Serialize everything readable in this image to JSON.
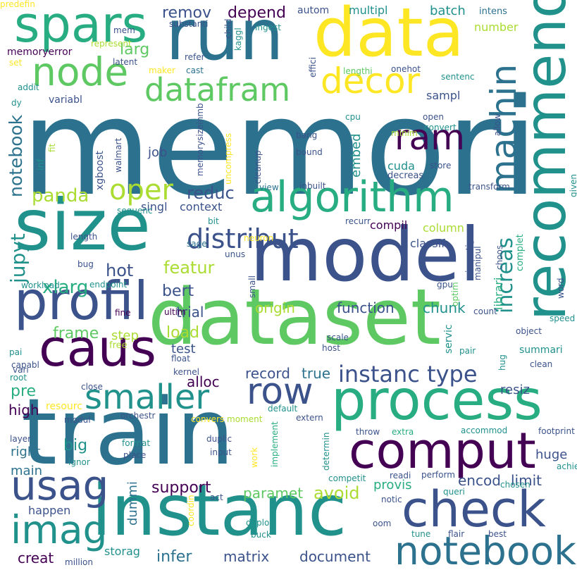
{
  "palette": {
    "dark_purple": "#440154",
    "indigo": "#3b528b",
    "teal_blue": "#2c728e",
    "teal": "#21918c",
    "green": "#27ad81",
    "light_green": "#5ec962",
    "yellow_green": "#aadc32",
    "yellow": "#fde725"
  },
  "words": [
    {
      "text": "memori",
      "size": 190,
      "color": "#2c728e"
    },
    {
      "text": "train",
      "size": 130,
      "color": "#2c728e"
    },
    {
      "text": "dataset",
      "size": 110,
      "color": "#5ec962"
    },
    {
      "text": "model",
      "size": 105,
      "color": "#3b528b"
    },
    {
      "text": "instanc",
      "size": 100,
      "color": "#21918c"
    },
    {
      "text": "size",
      "size": 100,
      "color": "#21918c"
    },
    {
      "text": "run",
      "size": 100,
      "color": "#2c728e"
    },
    {
      "text": "data",
      "size": 95,
      "color": "#fde725"
    },
    {
      "text": "recommend",
      "size": 80,
      "color": "#21918c"
    },
    {
      "text": "process",
      "size": 78,
      "color": "#27ad81"
    },
    {
      "text": "profil",
      "size": 75,
      "color": "#3b528b"
    },
    {
      "text": "caus",
      "size": 72,
      "color": "#440154"
    },
    {
      "text": "comput",
      "size": 70,
      "color": "#440154"
    },
    {
      "text": "check",
      "size": 70,
      "color": "#3b528b"
    },
    {
      "text": "spars",
      "size": 70,
      "color": "#27ad81"
    },
    {
      "text": "algorithm",
      "size": 60,
      "color": "#27ad81"
    },
    {
      "text": "notebook",
      "size": 55,
      "color": "#2c728e"
    },
    {
      "text": "usag",
      "size": 58,
      "color": "#3b528b"
    },
    {
      "text": "imag",
      "size": 55,
      "color": "#21918c"
    },
    {
      "text": "node",
      "size": 55,
      "color": "#5ec962"
    },
    {
      "text": "decor",
      "size": 50,
      "color": "#fde725"
    },
    {
      "text": "row",
      "size": 52,
      "color": "#3b528b"
    },
    {
      "text": "smaller",
      "size": 48,
      "color": "#21918c"
    },
    {
      "text": "ram",
      "size": 50,
      "color": "#440154"
    },
    {
      "text": "machin",
      "size": 50,
      "color": "#2c728e"
    },
    {
      "text": "datafram",
      "size": 45,
      "color": "#5ec962"
    },
    {
      "text": "oper",
      "size": 40,
      "color": "#aadc32"
    },
    {
      "text": "distribut",
      "size": 38,
      "color": "#3b528b"
    },
    {
      "text": "instanc type",
      "size": 32,
      "color": "#3b528b"
    },
    {
      "text": "increas",
      "size": 30,
      "color": "#21918c"
    },
    {
      "text": "notebook",
      "size": 25,
      "color": "#2c728e"
    },
    {
      "text": "jupyt",
      "size": 28,
      "color": "#21918c"
    },
    {
      "text": "xlarg",
      "size": 26,
      "color": "#27ad81"
    },
    {
      "text": "panda",
      "size": 26,
      "color": "#aadc32"
    },
    {
      "text": "reduc",
      "size": 24,
      "color": "#3b528b"
    },
    {
      "text": "featur",
      "size": 24,
      "color": "#aadc32"
    },
    {
      "text": "hot",
      "size": 24,
      "color": "#3b528b"
    },
    {
      "text": "bert",
      "size": 22,
      "color": "#3b528b"
    },
    {
      "text": "frame",
      "size": 22,
      "color": "#5ec962"
    },
    {
      "text": "load",
      "size": 22,
      "color": "#aadc32"
    },
    {
      "text": "trial",
      "size": 20,
      "color": "#3b528b"
    },
    {
      "text": "origin",
      "size": 20,
      "color": "#aadc32"
    },
    {
      "text": "function",
      "size": 20,
      "color": "#3b528b"
    },
    {
      "text": "chunk",
      "size": 20,
      "color": "#21918c"
    },
    {
      "text": "record",
      "size": 20,
      "color": "#3b528b"
    },
    {
      "text": "true",
      "size": 20,
      "color": "#2c728e"
    },
    {
      "text": "alloc",
      "size": 20,
      "color": "#440154"
    },
    {
      "text": "test",
      "size": 18,
      "color": "#3b528b"
    },
    {
      "text": "step",
      "size": 18,
      "color": "#aadc32"
    },
    {
      "text": "big",
      "size": 22,
      "color": "#21918c"
    },
    {
      "text": "pre",
      "size": 22,
      "color": "#27ad81"
    },
    {
      "text": "high",
      "size": 20,
      "color": "#440154"
    },
    {
      "text": "right",
      "size": 18,
      "color": "#2c728e"
    },
    {
      "text": "main",
      "size": 18,
      "color": "#2c728e"
    },
    {
      "text": "support",
      "size": 22,
      "color": "#440154"
    },
    {
      "text": "avoid",
      "size": 24,
      "color": "#aadc32"
    },
    {
      "text": "paramet",
      "size": 20,
      "color": "#5ec962"
    },
    {
      "text": "provis",
      "size": 18,
      "color": "#27ad81"
    },
    {
      "text": "encod",
      "size": 20,
      "color": "#3b528b"
    },
    {
      "text": "limit",
      "size": 20,
      "color": "#3b528b"
    },
    {
      "text": "huge",
      "size": 18,
      "color": "#3b528b"
    },
    {
      "text": "resiz",
      "size": 18,
      "color": "#3b528b"
    },
    {
      "text": "dummi",
      "size": 18,
      "color": "#2c728e"
    },
    {
      "text": "infer",
      "size": 22,
      "color": "#2c728e"
    },
    {
      "text": "matrix",
      "size": 20,
      "color": "#3b528b"
    },
    {
      "text": "document",
      "size": 20,
      "color": "#3b528b"
    },
    {
      "text": "creat",
      "size": 20,
      "color": "#440154"
    },
    {
      "text": "storag",
      "size": 16,
      "color": "#21918c"
    },
    {
      "text": "happen",
      "size": 16,
      "color": "#3b528b"
    },
    {
      "text": "remov",
      "size": 22,
      "color": "#3b528b"
    },
    {
      "text": "depend",
      "size": 22,
      "color": "#440154"
    },
    {
      "text": "larg",
      "size": 22,
      "color": "#5ec962"
    },
    {
      "text": "autom",
      "size": 14,
      "color": "#3b528b"
    },
    {
      "text": "multipl",
      "size": 16,
      "color": "#21918c"
    },
    {
      "text": "batch",
      "size": 18,
      "color": "#21918c"
    },
    {
      "text": "number",
      "size": 16,
      "color": "#aadc32"
    },
    {
      "text": "intens",
      "size": 13,
      "color": "#2c728e"
    },
    {
      "text": "memoryerror",
      "size": 14,
      "color": "#440154"
    },
    {
      "text": "sampl",
      "size": 16,
      "color": "#3b528b"
    },
    {
      "text": "job",
      "size": 18,
      "color": "#3b528b"
    },
    {
      "text": "embed",
      "size": 18,
      "color": "#21918c"
    },
    {
      "text": "cuda",
      "size": 16,
      "color": "#21918c"
    },
    {
      "text": "compil",
      "size": 16,
      "color": "#440154"
    },
    {
      "text": "column",
      "size": 16,
      "color": "#aadc32"
    },
    {
      "text": "classif",
      "size": 16,
      "color": "#3b528b"
    },
    {
      "text": "librari",
      "size": 16,
      "color": "#27ad81"
    },
    {
      "text": "singl",
      "size": 16,
      "color": "#3b528b"
    },
    {
      "text": "context",
      "size": 16,
      "color": "#3b528b"
    },
    {
      "text": "xgboost",
      "size": 14,
      "color": "#3b528b"
    },
    {
      "text": "variabl",
      "size": 14,
      "color": "#3b528b"
    },
    {
      "text": "complet",
      "size": 13,
      "color": "#27ad81"
    },
    {
      "text": "convert",
      "size": 12,
      "color": "#21918c"
    },
    {
      "text": "open",
      "size": 12,
      "color": "#3b528b"
    },
    {
      "text": "store",
      "size": 12,
      "color": "#3b528b"
    },
    {
      "text": "transform",
      "size": 12,
      "color": "#3b528b"
    },
    {
      "text": "decreas",
      "size": 13,
      "color": "#3b528b"
    },
    {
      "text": "cleanup",
      "size": 12,
      "color": "#3b528b"
    },
    {
      "text": "bang",
      "size": 12,
      "color": "#3b528b"
    },
    {
      "text": "bound",
      "size": 12,
      "color": "#3b528b"
    },
    {
      "text": "inbuilt",
      "size": 12,
      "color": "#3b528b"
    },
    {
      "text": "view",
      "size": 12,
      "color": "#2c728e"
    },
    {
      "text": "minim",
      "size": 12,
      "color": "#aadc32"
    },
    {
      "text": "cpu",
      "size": 12,
      "color": "#21918c"
    },
    {
      "text": "onehot",
      "size": 12,
      "color": "#3b528b"
    },
    {
      "text": "sentenc",
      "size": 12,
      "color": "#21918c"
    },
    {
      "text": "lengthi",
      "size": 12,
      "color": "#5ec962"
    },
    {
      "text": "effici",
      "size": 12,
      "color": "#3b528b"
    },
    {
      "text": "kaggl",
      "size": 12,
      "color": "#21918c"
    },
    {
      "text": "ingest",
      "size": 12,
      "color": "#21918c"
    },
    {
      "text": "substanti",
      "size": 12,
      "color": "#3b528b"
    },
    {
      "text": "represent",
      "size": 12,
      "color": "#aadc32"
    },
    {
      "text": "refer",
      "size": 12,
      "color": "#3b528b"
    },
    {
      "text": "cast",
      "size": 12,
      "color": "#2c728e"
    },
    {
      "text": "maker",
      "size": 12,
      "color": "#fde725"
    },
    {
      "text": "latent",
      "size": 12,
      "color": "#3b528b"
    },
    {
      "text": "child",
      "size": 12,
      "color": "#3b528b"
    },
    {
      "text": "mem",
      "size": 12,
      "color": "#3b528b"
    },
    {
      "text": "set",
      "size": 12,
      "color": "#fde725"
    },
    {
      "text": "addit",
      "size": 12,
      "color": "#21918c"
    },
    {
      "text": "dy",
      "size": 12,
      "color": "#21918c"
    },
    {
      "text": "fit",
      "size": 12,
      "color": "#aadc32"
    },
    {
      "text": "walmart",
      "size": 12,
      "color": "#3b528b"
    },
    {
      "text": "memorysizeinmb",
      "size": 12,
      "color": "#3b528b"
    },
    {
      "text": "uncompress",
      "size": 12,
      "color": "#fde725"
    },
    {
      "text": "inf",
      "size": 13,
      "color": "#21918c"
    },
    {
      "text": "sequenc",
      "size": 12,
      "color": "#21918c"
    },
    {
      "text": "bit",
      "size": 12,
      "color": "#21918c"
    },
    {
      "text": "sage",
      "size": 12,
      "color": "#2c728e"
    },
    {
      "text": "neuron",
      "size": 12,
      "color": "#fde725"
    },
    {
      "text": "recurr",
      "size": 12,
      "color": "#3b528b"
    },
    {
      "text": "unus",
      "size": 12,
      "color": "#3b528b"
    },
    {
      "text": "choos",
      "size": 12,
      "color": "#3b528b"
    },
    {
      "text": "optim",
      "size": 12,
      "color": "#5ec962"
    },
    {
      "text": "investig",
      "size": 12,
      "color": "#3b528b"
    },
    {
      "text": "manipul",
      "size": 12,
      "color": "#3b528b"
    },
    {
      "text": "allow",
      "size": 12,
      "color": "#3b528b"
    },
    {
      "text": "given",
      "size": 12,
      "color": "#21918c"
    },
    {
      "text": "word",
      "size": 12,
      "color": "#3b528b"
    },
    {
      "text": "gpu",
      "size": 12,
      "color": "#3b528b"
    },
    {
      "text": "count",
      "size": 12,
      "color": "#3b528b"
    },
    {
      "text": "speed",
      "size": 12,
      "color": "#21918c"
    },
    {
      "text": "object",
      "size": 12,
      "color": "#3b528b"
    },
    {
      "text": "summari",
      "size": 14,
      "color": "#21918c"
    },
    {
      "text": "servic",
      "size": 14,
      "color": "#21918c"
    },
    {
      "text": "hug",
      "size": 12,
      "color": "#21918c"
    },
    {
      "text": "scale",
      "size": 12,
      "color": "#3b528b"
    },
    {
      "text": "host",
      "size": 12,
      "color": "#3b528b"
    },
    {
      "text": "pair",
      "size": 12,
      "color": "#21918c"
    },
    {
      "text": "clean",
      "size": 12,
      "color": "#3b528b"
    },
    {
      "text": "length",
      "size": 12,
      "color": "#3b528b"
    },
    {
      "text": "fine",
      "size": 12,
      "color": "#440154"
    },
    {
      "text": "bug",
      "size": 12,
      "color": "#3b528b"
    },
    {
      "text": "workload",
      "size": 12,
      "color": "#21918c"
    },
    {
      "text": "endpoint",
      "size": 12,
      "color": "#21918c"
    },
    {
      "text": "small",
      "size": 12,
      "color": "#3b528b"
    },
    {
      "text": "ultim",
      "size": 12,
      "color": "#440154"
    },
    {
      "text": "pai",
      "size": 12,
      "color": "#21918c"
    },
    {
      "text": "free",
      "size": 13,
      "color": "#aadc32"
    },
    {
      "text": "vari",
      "size": 12,
      "color": "#3b528b"
    },
    {
      "text": "capabl",
      "size": 12,
      "color": "#3b528b"
    },
    {
      "text": "float",
      "size": 12,
      "color": "#3b528b"
    },
    {
      "text": "kernel",
      "size": 12,
      "color": "#3b528b"
    },
    {
      "text": "root",
      "size": 12,
      "color": "#21918c"
    },
    {
      "text": "close",
      "size": 12,
      "color": "#3b528b"
    },
    {
      "text": "default",
      "size": 12,
      "color": "#21918c"
    },
    {
      "text": "resourc",
      "size": 14,
      "color": "#fde725"
    },
    {
      "text": "modul",
      "size": 12,
      "color": "#3b528b"
    },
    {
      "text": "orchestr",
      "size": 12,
      "color": "#3b528b"
    },
    {
      "text": "convers",
      "size": 12,
      "color": "#fde725"
    },
    {
      "text": "moment",
      "size": 12,
      "color": "#aadc32"
    },
    {
      "text": "extern",
      "size": 12,
      "color": "#3b528b"
    },
    {
      "text": "throw",
      "size": 12,
      "color": "#3b528b"
    },
    {
      "text": "extra",
      "size": 12,
      "color": "#27ad81"
    },
    {
      "text": "accommod",
      "size": 12,
      "color": "#21918c"
    },
    {
      "text": "footprint",
      "size": 12,
      "color": "#3b528b"
    },
    {
      "text": "layer",
      "size": 12,
      "color": "#3b528b"
    },
    {
      "text": "format",
      "size": 12,
      "color": "#21918c"
    },
    {
      "text": "duplic",
      "size": 12,
      "color": "#3b528b"
    },
    {
      "text": "place",
      "size": 12,
      "color": "#3b528b"
    },
    {
      "text": "input",
      "size": 12,
      "color": "#3b528b"
    },
    {
      "text": "ignor",
      "size": 12,
      "color": "#21918c"
    },
    {
      "text": "work",
      "size": 12,
      "color": "#fde725"
    },
    {
      "text": "implement",
      "size": 12,
      "color": "#27ad81"
    },
    {
      "text": "determin",
      "size": 12,
      "color": "#21918c"
    },
    {
      "text": "competit",
      "size": 12,
      "color": "#21918c"
    },
    {
      "text": "perform",
      "size": 12,
      "color": "#3b528b"
    },
    {
      "text": "readi",
      "size": 12,
      "color": "#3b528b"
    },
    {
      "text": "chosen",
      "size": 12,
      "color": "#21918c"
    },
    {
      "text": "achiev",
      "size": 12,
      "color": "#21918c"
    },
    {
      "text": "queri",
      "size": 12,
      "color": "#21918c"
    },
    {
      "text": "notic",
      "size": 12,
      "color": "#3b528b"
    },
    {
      "text": "act",
      "size": 12,
      "color": "#3b528b"
    },
    {
      "text": "coordin",
      "size": 12,
      "color": "#fde725"
    },
    {
      "text": "deploi",
      "size": 12,
      "color": "#21918c"
    },
    {
      "text": "buck",
      "size": 12,
      "color": "#21918c"
    },
    {
      "text": "oom",
      "size": 12,
      "color": "#3b528b"
    },
    {
      "text": "tune",
      "size": 12,
      "color": "#21918c"
    },
    {
      "text": "flair",
      "size": 12,
      "color": "#3b528b"
    },
    {
      "text": "best",
      "size": 12,
      "color": "#3b528b"
    },
    {
      "text": "million",
      "size": 12,
      "color": "#3b528b"
    },
    {
      "text": "predefin",
      "size": 12,
      "color": "#fde725"
    }
  ]
}
